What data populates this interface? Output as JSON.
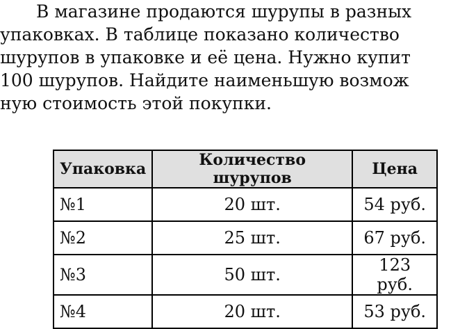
{
  "paragraph": [
    "В магазине продаются шурупы в разных",
    "упаковках. В таблице показано количество",
    "шурупов в упаковке и её цена. Нужно купит",
    "100 шурупов. Найдите наименьшую возмож",
    "ную стоимость этой покупки."
  ],
  "table": {
    "headers": [
      "Упаковка",
      "Количество шурупов",
      "Цена"
    ],
    "rows": [
      [
        "№1",
        "20 шт.",
        "54 руб."
      ],
      [
        "№2",
        "25 шт.",
        "67 руб."
      ],
      [
        "№3",
        "50 шт.",
        "123 руб."
      ],
      [
        "№4",
        "20 шт.",
        "53 руб."
      ]
    ]
  }
}
